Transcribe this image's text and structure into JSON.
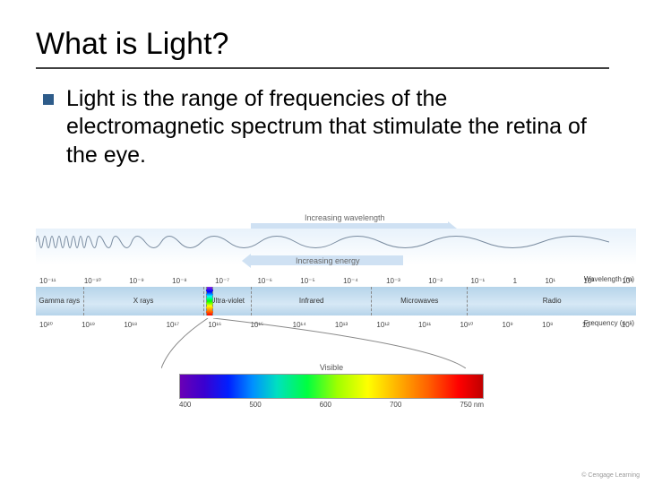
{
  "title": "What is Light?",
  "body": "Light is the range of frequencies of the electromagnetic spectrum that stimulate the retina of the eye.",
  "diagram": {
    "wavelength_arrow_label": "Increasing wavelength",
    "energy_arrow_label": "Increasing energy",
    "wavelength_axis_label": "Wavelength (m)",
    "frequency_axis_label": "Frequency (s⁻¹)",
    "wavelength_ticks": [
      "10⁻¹¹",
      "10⁻¹⁰",
      "10⁻⁹",
      "10⁻⁸",
      "10⁻⁷",
      "10⁻⁶",
      "10⁻⁵",
      "10⁻⁴",
      "10⁻³",
      "10⁻²",
      "10⁻¹",
      "1",
      "10¹",
      "10²",
      "10³"
    ],
    "frequency_ticks": [
      "10²⁰",
      "10¹⁹",
      "10¹⁸",
      "10¹⁷",
      "10¹⁶",
      "10¹⁵",
      "10¹⁴",
      "10¹³",
      "10¹²",
      "10¹¹",
      "10¹⁰",
      "10⁹",
      "10⁸",
      "10⁷",
      "10⁶"
    ],
    "bands": [
      {
        "label": "Gamma rays",
        "width_pct": 8
      },
      {
        "label": "X rays",
        "width_pct": 20
      },
      {
        "label": "Ultra-violet",
        "width_pct": 8
      },
      {
        "label": "Infrared",
        "width_pct": 20
      },
      {
        "label": "Microwaves",
        "width_pct": 16
      },
      {
        "label": "Radio",
        "width_pct": 28
      }
    ],
    "visible_label": "Visible",
    "nm_ticks": [
      "400",
      "500",
      "600",
      "700",
      "750 nm"
    ],
    "colors": {
      "band_bg_top": "#b6d4ea",
      "band_bg_mid": "#d6e8f5",
      "arrow_fill": "#cfe1f3",
      "wave_stroke": "#7a8ca0",
      "cone_stroke": "#888888"
    }
  },
  "credit": "© Cengage Learning"
}
